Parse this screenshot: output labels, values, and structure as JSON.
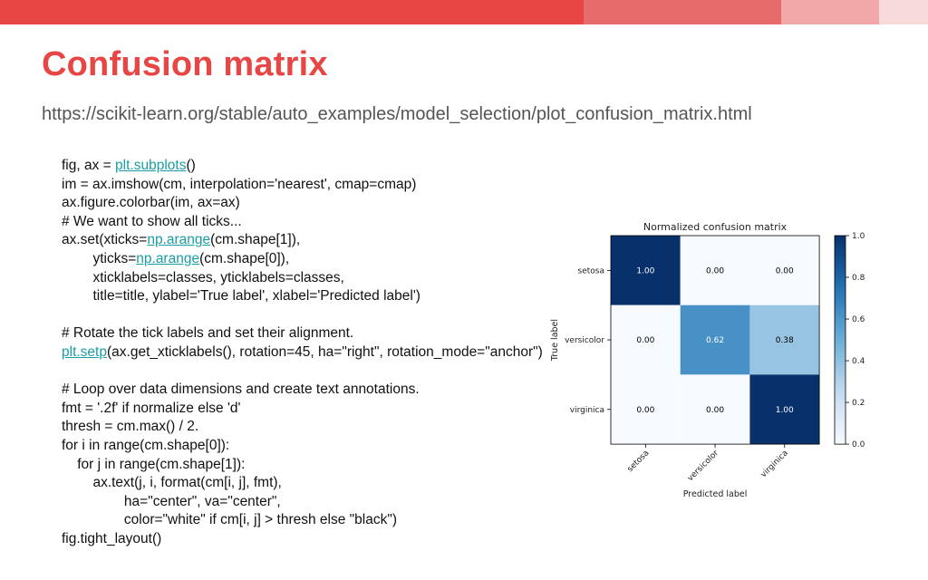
{
  "slide": {
    "title": "Confusion matrix",
    "url": "https://scikit-learn.org/stable/auto_examples/model_selection/plot_confusion_matrix.html"
  },
  "colors": {
    "title": "#e84545",
    "link": "#1a9ea3",
    "bar_segments": [
      "#e84545",
      "#e86b6b",
      "#f2a8a8",
      "#f8dada"
    ],
    "cmap_low": "#f7fbff",
    "cmap_high": "#08306b"
  },
  "code_lines": [
    [
      {
        "t": "fig, ax = "
      },
      {
        "t": "plt.subplots",
        "link": true
      },
      {
        "t": "()"
      }
    ],
    [
      {
        "t": "im = ax.imshow(cm, interpolation='nearest', cmap=cmap)"
      }
    ],
    [
      {
        "t": "ax.figure.colorbar(im, ax=ax)"
      }
    ],
    [
      {
        "t": "# We want to show all ticks..."
      }
    ],
    [
      {
        "t": "ax.set(xticks="
      },
      {
        "t": "np.arange",
        "link": true
      },
      {
        "t": "(cm.shape[1]),"
      }
    ],
    [
      {
        "t": "        yticks="
      },
      {
        "t": "np.arange",
        "link": true
      },
      {
        "t": "(cm.shape[0]),"
      }
    ],
    [
      {
        "t": "        xticklabels=classes, yticklabels=classes,"
      }
    ],
    [
      {
        "t": "        title=title, ylabel='True label', xlabel='Predicted label')"
      }
    ],
    [
      {
        "t": ""
      }
    ],
    [
      {
        "t": "# Rotate the tick labels and set their alignment."
      }
    ],
    [
      {
        "t": "plt.setp",
        "link": true
      },
      {
        "t": "(ax.get_xticklabels(), rotation=45, ha=\"right\", rotation_mode=\"anchor\")"
      }
    ],
    [
      {
        "t": ""
      }
    ],
    [
      {
        "t": "# Loop over data dimensions and create text annotations."
      }
    ],
    [
      {
        "t": "fmt = '.2f' if normalize else 'd'"
      }
    ],
    [
      {
        "t": "thresh = cm.max() / 2."
      }
    ],
    [
      {
        "t": "for i in range(cm.shape[0]):"
      }
    ],
    [
      {
        "t": "    for j in range(cm.shape[1]):"
      }
    ],
    [
      {
        "t": "        ax.text(j, i, format(cm[i, j], fmt),"
      }
    ],
    [
      {
        "t": "                ha=\"center\", va=\"center\","
      }
    ],
    [
      {
        "t": "                color=\"white\" if cm[i, j] > thresh else \"black\")"
      }
    ],
    [
      {
        "t": "fig.tight_layout()"
      }
    ]
  ],
  "chart_data": {
    "type": "heatmap",
    "title": "Normalized confusion matrix",
    "xlabel": "Predicted label",
    "ylabel": "True label",
    "x_categories": [
      "setosa",
      "versicolor",
      "virginica"
    ],
    "y_categories": [
      "setosa",
      "versicolor",
      "virginica"
    ],
    "values": [
      [
        1.0,
        0.0,
        0.0
      ],
      [
        0.0,
        0.62,
        0.38
      ],
      [
        0.0,
        0.0,
        1.0
      ]
    ],
    "value_labels": [
      [
        "1.00",
        "0.00",
        "0.00"
      ],
      [
        "0.00",
        "0.62",
        "0.38"
      ],
      [
        "0.00",
        "0.00",
        "1.00"
      ]
    ],
    "colorbar": {
      "range": [
        0.0,
        1.0
      ],
      "ticks": [
        0.0,
        0.2,
        0.4,
        0.6,
        0.8,
        1.0
      ],
      "tick_labels": [
        "0.0",
        "0.2",
        "0.4",
        "0.6",
        "0.8",
        "1.0"
      ]
    },
    "threshold": 0.5,
    "grid": false
  }
}
